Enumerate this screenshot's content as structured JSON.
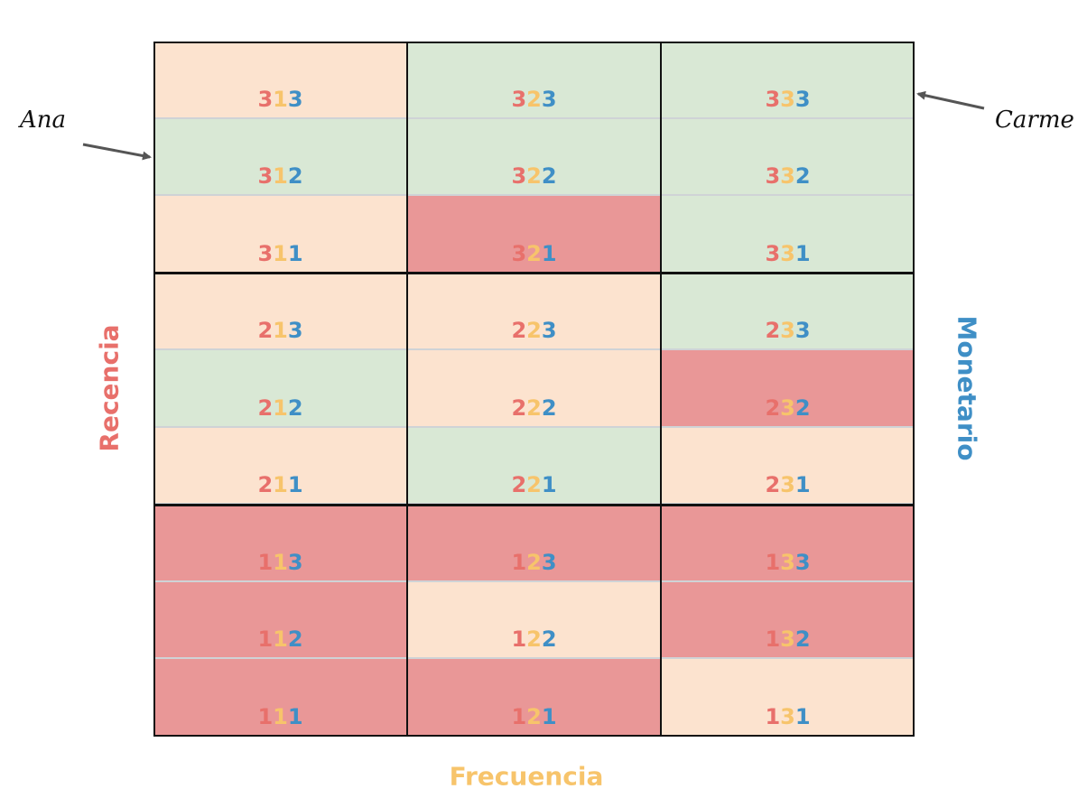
{
  "axes": {
    "recencia": "Recencia",
    "frecuencia": "Frecuencia",
    "monetario": "Monetario"
  },
  "colors": {
    "recencia": "#e8706b",
    "frecuencia": "#f7c46b",
    "monetario": "#3f8fc6",
    "high": "#d9e8d5",
    "mid": "#fce3cf",
    "low": "#e99797"
  },
  "annotations": {
    "left": "Ana",
    "right": "Carme"
  },
  "rows": [
    [
      "313",
      "323",
      "333"
    ],
    [
      "312",
      "322",
      "332"
    ],
    [
      "311",
      "321",
      "331"
    ],
    [
      "213",
      "223",
      "233"
    ],
    [
      "212",
      "222",
      "232"
    ],
    [
      "211",
      "221",
      "231"
    ],
    [
      "113",
      "123",
      "133"
    ],
    [
      "112",
      "122",
      "132"
    ],
    [
      "111",
      "121",
      "131"
    ]
  ],
  "fills": [
    [
      "mid",
      "high",
      "high"
    ],
    [
      "high",
      "high",
      "high"
    ],
    [
      "mid",
      "low",
      "high"
    ],
    [
      "mid",
      "mid",
      "high"
    ],
    [
      "high",
      "mid",
      "low"
    ],
    [
      "mid",
      "high",
      "mid"
    ],
    [
      "low",
      "low",
      "low"
    ],
    [
      "low",
      "mid",
      "low"
    ],
    [
      "low",
      "low",
      "mid"
    ]
  ]
}
